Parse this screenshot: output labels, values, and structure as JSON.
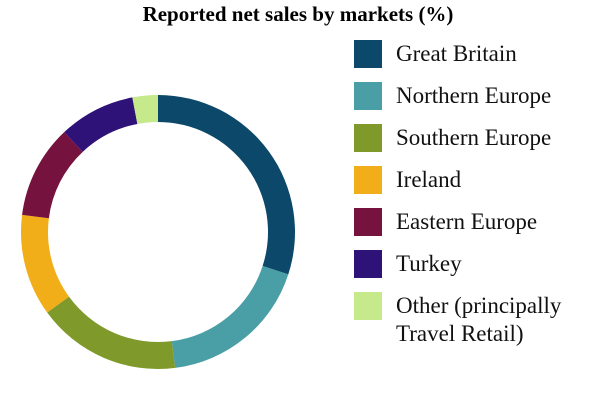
{
  "chart_data": {
    "type": "donut",
    "title": "Reported net sales by markets (%)",
    "categories": [
      "Great Britain",
      "Northern Europe",
      "Southern Europe",
      "Ireland",
      "Eastern Europe",
      "Turkey",
      "Other (principally Travel Retail)"
    ],
    "values": [
      30,
      18,
      17,
      12,
      11,
      9,
      3
    ],
    "colors": [
      "#0b4869",
      "#4a9ea6",
      "#7f9a2b",
      "#f2ae19",
      "#76123e",
      "#2f1278",
      "#c6e98b"
    ]
  }
}
